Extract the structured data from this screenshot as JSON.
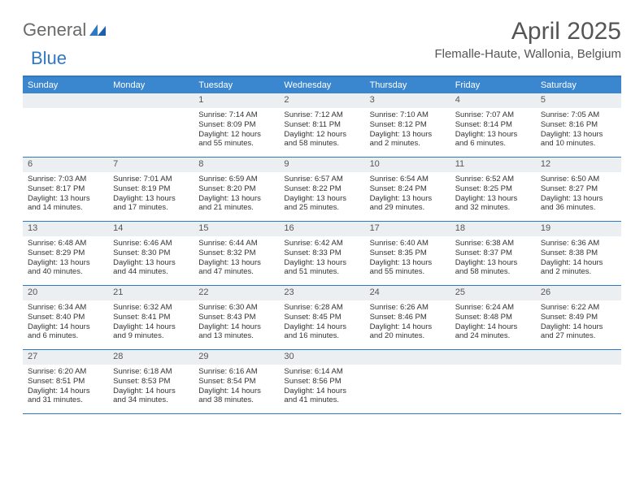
{
  "brand": {
    "word1": "General",
    "word2": "Blue"
  },
  "title": "April 2025",
  "location": "Flemalle-Haute, Wallonia, Belgium",
  "colors": {
    "header_blue": "#3a87cf",
    "rule_blue": "#2f78c4",
    "daybar_gray": "#eceff1",
    "text": "#333333",
    "logo_gray": "#6a6a6a"
  },
  "typography": {
    "title_fontsize": 30,
    "location_fontsize": 15,
    "dow_fontsize": 11,
    "daynum_fontsize": 11,
    "body_fontsize": 9.5
  },
  "days_of_week": [
    "Sunday",
    "Monday",
    "Tuesday",
    "Wednesday",
    "Thursday",
    "Friday",
    "Saturday"
  ],
  "weeks": [
    [
      null,
      null,
      {
        "n": "1",
        "sr": "7:14 AM",
        "ss": "8:09 PM",
        "dl": "12 hours and 55 minutes."
      },
      {
        "n": "2",
        "sr": "7:12 AM",
        "ss": "8:11 PM",
        "dl": "12 hours and 58 minutes."
      },
      {
        "n": "3",
        "sr": "7:10 AM",
        "ss": "8:12 PM",
        "dl": "13 hours and 2 minutes."
      },
      {
        "n": "4",
        "sr": "7:07 AM",
        "ss": "8:14 PM",
        "dl": "13 hours and 6 minutes."
      },
      {
        "n": "5",
        "sr": "7:05 AM",
        "ss": "8:16 PM",
        "dl": "13 hours and 10 minutes."
      }
    ],
    [
      {
        "n": "6",
        "sr": "7:03 AM",
        "ss": "8:17 PM",
        "dl": "13 hours and 14 minutes."
      },
      {
        "n": "7",
        "sr": "7:01 AM",
        "ss": "8:19 PM",
        "dl": "13 hours and 17 minutes."
      },
      {
        "n": "8",
        "sr": "6:59 AM",
        "ss": "8:20 PM",
        "dl": "13 hours and 21 minutes."
      },
      {
        "n": "9",
        "sr": "6:57 AM",
        "ss": "8:22 PM",
        "dl": "13 hours and 25 minutes."
      },
      {
        "n": "10",
        "sr": "6:54 AM",
        "ss": "8:24 PM",
        "dl": "13 hours and 29 minutes."
      },
      {
        "n": "11",
        "sr": "6:52 AM",
        "ss": "8:25 PM",
        "dl": "13 hours and 32 minutes."
      },
      {
        "n": "12",
        "sr": "6:50 AM",
        "ss": "8:27 PM",
        "dl": "13 hours and 36 minutes."
      }
    ],
    [
      {
        "n": "13",
        "sr": "6:48 AM",
        "ss": "8:29 PM",
        "dl": "13 hours and 40 minutes."
      },
      {
        "n": "14",
        "sr": "6:46 AM",
        "ss": "8:30 PM",
        "dl": "13 hours and 44 minutes."
      },
      {
        "n": "15",
        "sr": "6:44 AM",
        "ss": "8:32 PM",
        "dl": "13 hours and 47 minutes."
      },
      {
        "n": "16",
        "sr": "6:42 AM",
        "ss": "8:33 PM",
        "dl": "13 hours and 51 minutes."
      },
      {
        "n": "17",
        "sr": "6:40 AM",
        "ss": "8:35 PM",
        "dl": "13 hours and 55 minutes."
      },
      {
        "n": "18",
        "sr": "6:38 AM",
        "ss": "8:37 PM",
        "dl": "13 hours and 58 minutes."
      },
      {
        "n": "19",
        "sr": "6:36 AM",
        "ss": "8:38 PM",
        "dl": "14 hours and 2 minutes."
      }
    ],
    [
      {
        "n": "20",
        "sr": "6:34 AM",
        "ss": "8:40 PM",
        "dl": "14 hours and 6 minutes."
      },
      {
        "n": "21",
        "sr": "6:32 AM",
        "ss": "8:41 PM",
        "dl": "14 hours and 9 minutes."
      },
      {
        "n": "22",
        "sr": "6:30 AM",
        "ss": "8:43 PM",
        "dl": "14 hours and 13 minutes."
      },
      {
        "n": "23",
        "sr": "6:28 AM",
        "ss": "8:45 PM",
        "dl": "14 hours and 16 minutes."
      },
      {
        "n": "24",
        "sr": "6:26 AM",
        "ss": "8:46 PM",
        "dl": "14 hours and 20 minutes."
      },
      {
        "n": "25",
        "sr": "6:24 AM",
        "ss": "8:48 PM",
        "dl": "14 hours and 24 minutes."
      },
      {
        "n": "26",
        "sr": "6:22 AM",
        "ss": "8:49 PM",
        "dl": "14 hours and 27 minutes."
      }
    ],
    [
      {
        "n": "27",
        "sr": "6:20 AM",
        "ss": "8:51 PM",
        "dl": "14 hours and 31 minutes."
      },
      {
        "n": "28",
        "sr": "6:18 AM",
        "ss": "8:53 PM",
        "dl": "14 hours and 34 minutes."
      },
      {
        "n": "29",
        "sr": "6:16 AM",
        "ss": "8:54 PM",
        "dl": "14 hours and 38 minutes."
      },
      {
        "n": "30",
        "sr": "6:14 AM",
        "ss": "8:56 PM",
        "dl": "14 hours and 41 minutes."
      },
      null,
      null,
      null
    ]
  ],
  "labels": {
    "sunrise": "Sunrise:",
    "sunset": "Sunset:",
    "daylight": "Daylight:"
  }
}
